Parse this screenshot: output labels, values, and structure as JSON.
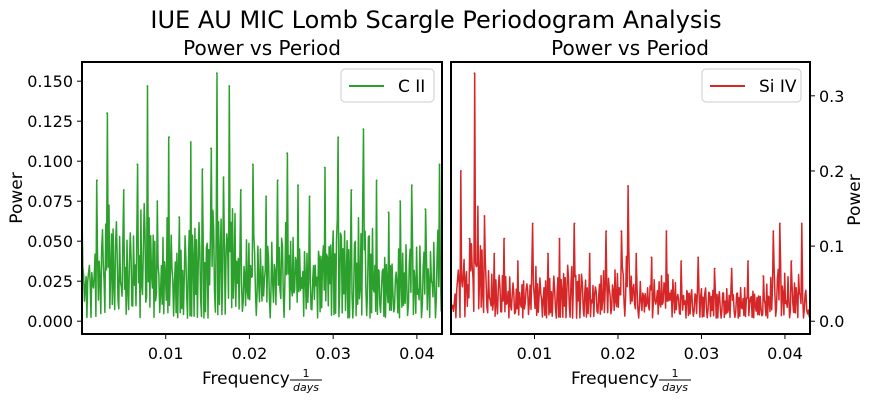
{
  "figure": {
    "title": "IUE AU MIC Lomb Scargle Periodogram Analysis"
  },
  "chart_data": [
    {
      "type": "line",
      "title": "Power vs Period",
      "xlabel": "Frequency",
      "xlabel_fraction": {
        "numerator": "1",
        "denominator": "days"
      },
      "ylabel": "Power",
      "ylabel_side": "left",
      "xlim": [
        0.0,
        0.043
      ],
      "ylim": [
        -0.008,
        0.162
      ],
      "xticks": [
        0.01,
        0.02,
        0.03,
        0.04
      ],
      "xtick_labels": [
        "0.01",
        "0.02",
        "0.03",
        "0.04"
      ],
      "yticks": [
        0.0,
        0.025,
        0.05,
        0.075,
        0.1,
        0.125,
        0.15
      ],
      "ytick_labels": [
        "0.000",
        "0.025",
        "0.050",
        "0.075",
        "0.100",
        "0.125",
        "0.150"
      ],
      "grid": false,
      "legend_position": "top-right",
      "series": [
        {
          "name": "C II",
          "color": "#2ca02c",
          "x": [
            0.0,
            0.0018,
            0.003,
            0.005,
            0.0066,
            0.0078,
            0.009,
            0.0104,
            0.0116,
            0.013,
            0.0144,
            0.0154,
            0.0161,
            0.0169,
            0.0176,
            0.019,
            0.0204,
            0.022,
            0.0234,
            0.0245,
            0.0258,
            0.0272,
            0.029,
            0.0306,
            0.0322,
            0.0336,
            0.0352,
            0.0366,
            0.038,
            0.0394,
            0.041,
            0.0427,
            0.043
          ],
          "y": [
            0.068,
            0.088,
            0.13,
            0.082,
            0.098,
            0.147,
            0.075,
            0.115,
            0.065,
            0.112,
            0.095,
            0.108,
            0.155,
            0.09,
            0.147,
            0.082,
            0.098,
            0.078,
            0.088,
            0.105,
            0.085,
            0.078,
            0.096,
            0.115,
            0.082,
            0.12,
            0.088,
            0.068,
            0.075,
            0.085,
            0.07,
            0.098,
            0.01
          ]
        }
      ]
    },
    {
      "type": "line",
      "title": "Power vs Period",
      "xlabel": "Frequency",
      "xlabel_fraction": {
        "numerator": "1",
        "denominator": "days"
      },
      "ylabel": "Power",
      "ylabel_side": "right",
      "xlim": [
        0.0,
        0.043
      ],
      "ylim": [
        -0.017,
        0.345
      ],
      "xticks": [
        0.01,
        0.02,
        0.03,
        0.04
      ],
      "xtick_labels": [
        "0.01",
        "0.02",
        "0.03",
        "0.04"
      ],
      "yticks": [
        0.0,
        0.1,
        0.2,
        0.3
      ],
      "ytick_labels": [
        "0.0",
        "0.1",
        "0.2",
        "0.3"
      ],
      "grid": false,
      "legend_position": "top-right",
      "series": [
        {
          "name": "Si IV",
          "color": "#d62728",
          "x": [
            0.0,
            0.0012,
            0.0022,
            0.0028,
            0.004,
            0.0052,
            0.0064,
            0.008,
            0.0098,
            0.0116,
            0.013,
            0.0148,
            0.0166,
            0.0186,
            0.0204,
            0.0212,
            0.0222,
            0.024,
            0.0258,
            0.0276,
            0.0296,
            0.0316,
            0.0336,
            0.0356,
            0.0374,
            0.0386,
            0.0394,
            0.0408,
            0.042,
            0.043
          ],
          "y": [
            0.02,
            0.2,
            0.11,
            0.33,
            0.14,
            0.09,
            0.11,
            0.08,
            0.13,
            0.09,
            0.11,
            0.13,
            0.09,
            0.12,
            0.12,
            0.18,
            0.09,
            0.085,
            0.12,
            0.08,
            0.085,
            0.07,
            0.07,
            0.08,
            0.06,
            0.12,
            0.13,
            0.08,
            0.13,
            0.01
          ]
        }
      ]
    }
  ]
}
